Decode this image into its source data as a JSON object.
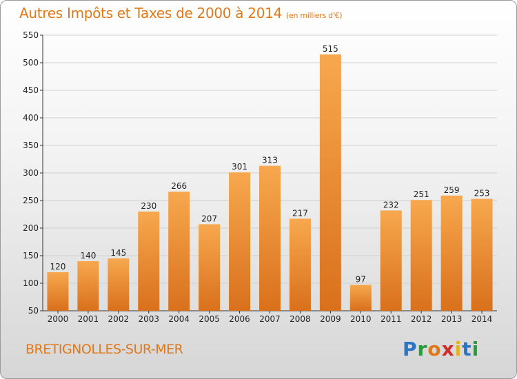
{
  "header": {
    "title": "Autres Impôts et Taxes de 2000 à 2014",
    "unit": "(en milliers d'€)"
  },
  "footer": {
    "city": "BRETIGNOLLES-SUR-MER",
    "logo_letters": [
      "P",
      "r",
      "o",
      "x",
      "i",
      "t",
      "i"
    ]
  },
  "colors": {
    "bar_light": "#f7a84e",
    "bar_dark": "#d9701c",
    "accent": "#e07818",
    "grid": "#d0d0d0"
  },
  "chart_data": {
    "type": "bar",
    "title": "Autres Impôts et Taxes de 2000 à 2014",
    "subtitle": "(en milliers d'€)",
    "categories": [
      "2000",
      "2001",
      "2002",
      "2003",
      "2004",
      "2005",
      "2006",
      "2007",
      "2008",
      "2009",
      "2010",
      "2011",
      "2012",
      "2013",
      "2014"
    ],
    "values": [
      120,
      140,
      145,
      230,
      266,
      207,
      301,
      313,
      217,
      515,
      97,
      232,
      251,
      259,
      253
    ],
    "ylim": [
      50,
      550
    ],
    "yticks": [
      50,
      100,
      150,
      200,
      250,
      300,
      350,
      400,
      450,
      500,
      550
    ],
    "grid": true,
    "xlabel": "",
    "ylabel": ""
  }
}
